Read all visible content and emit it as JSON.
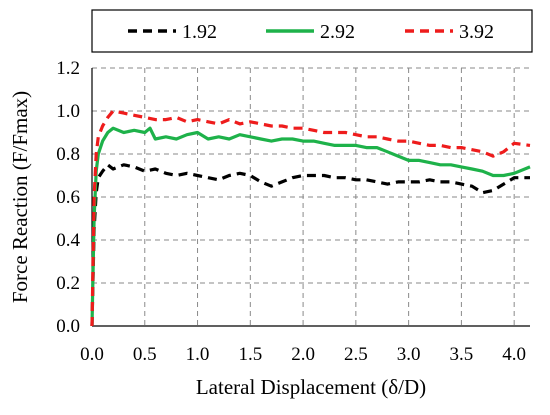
{
  "chart_data": {
    "type": "line",
    "xlabel": "Lateral Displacement (δ/D)",
    "ylabel": "Force Reaction (F/Fmax)",
    "xlim": [
      0.0,
      4.15
    ],
    "ylim": [
      0.0,
      1.2
    ],
    "xticks": [
      "0.0",
      "0.5",
      "1.0",
      "1.5",
      "2.0",
      "2.5",
      "3.0",
      "3.5",
      "4.0"
    ],
    "yticks": [
      "0.0",
      "0.2",
      "0.4",
      "0.6",
      "0.8",
      "1.0",
      "1.2"
    ],
    "grid": true,
    "legend_position": "top",
    "series": [
      {
        "name": "1.92",
        "color": "#000000",
        "style": "dashed",
        "x": [
          0.0,
          0.02,
          0.04,
          0.06,
          0.1,
          0.15,
          0.2,
          0.3,
          0.4,
          0.5,
          0.6,
          0.7,
          0.8,
          0.9,
          1.0,
          1.1,
          1.2,
          1.3,
          1.4,
          1.5,
          1.6,
          1.7,
          1.8,
          1.9,
          2.0,
          2.1,
          2.2,
          2.3,
          2.4,
          2.5,
          2.6,
          2.7,
          2.8,
          2.9,
          3.0,
          3.1,
          3.2,
          3.3,
          3.4,
          3.5,
          3.6,
          3.7,
          3.8,
          3.9,
          4.0,
          4.15
        ],
        "y": [
          0.0,
          0.45,
          0.62,
          0.69,
          0.72,
          0.75,
          0.73,
          0.75,
          0.74,
          0.72,
          0.73,
          0.71,
          0.7,
          0.71,
          0.7,
          0.69,
          0.68,
          0.7,
          0.71,
          0.7,
          0.67,
          0.65,
          0.67,
          0.69,
          0.7,
          0.7,
          0.7,
          0.69,
          0.69,
          0.68,
          0.68,
          0.67,
          0.66,
          0.67,
          0.67,
          0.67,
          0.68,
          0.67,
          0.67,
          0.66,
          0.65,
          0.62,
          0.63,
          0.66,
          0.69,
          0.69
        ]
      },
      {
        "name": "2.92",
        "color": "#1eb24a",
        "style": "solid",
        "x": [
          0.0,
          0.02,
          0.04,
          0.06,
          0.1,
          0.15,
          0.2,
          0.3,
          0.4,
          0.5,
          0.55,
          0.6,
          0.7,
          0.8,
          0.9,
          1.0,
          1.1,
          1.2,
          1.3,
          1.4,
          1.5,
          1.6,
          1.7,
          1.8,
          1.9,
          2.0,
          2.1,
          2.2,
          2.3,
          2.4,
          2.5,
          2.6,
          2.7,
          2.8,
          2.9,
          3.0,
          3.1,
          3.2,
          3.3,
          3.4,
          3.5,
          3.6,
          3.7,
          3.8,
          3.9,
          4.0,
          4.15
        ],
        "y": [
          0.0,
          0.5,
          0.72,
          0.8,
          0.86,
          0.9,
          0.92,
          0.9,
          0.91,
          0.9,
          0.92,
          0.87,
          0.88,
          0.87,
          0.89,
          0.9,
          0.87,
          0.88,
          0.87,
          0.89,
          0.88,
          0.87,
          0.86,
          0.87,
          0.87,
          0.86,
          0.86,
          0.85,
          0.84,
          0.84,
          0.84,
          0.83,
          0.83,
          0.81,
          0.79,
          0.77,
          0.77,
          0.76,
          0.75,
          0.75,
          0.74,
          0.73,
          0.72,
          0.7,
          0.7,
          0.71,
          0.74
        ]
      },
      {
        "name": "3.92",
        "color": "#ee1c1c",
        "style": "dashed",
        "x": [
          0.0,
          0.02,
          0.04,
          0.06,
          0.1,
          0.15,
          0.2,
          0.3,
          0.4,
          0.5,
          0.6,
          0.7,
          0.8,
          0.9,
          1.0,
          1.1,
          1.2,
          1.3,
          1.4,
          1.5,
          1.6,
          1.7,
          1.8,
          1.9,
          2.0,
          2.1,
          2.2,
          2.3,
          2.4,
          2.5,
          2.6,
          2.7,
          2.8,
          2.9,
          3.0,
          3.1,
          3.2,
          3.3,
          3.4,
          3.5,
          3.6,
          3.7,
          3.8,
          3.9,
          4.0,
          4.15
        ],
        "y": [
          0.0,
          0.6,
          0.8,
          0.88,
          0.93,
          0.97,
          1.0,
          0.99,
          0.98,
          0.97,
          0.96,
          0.96,
          0.97,
          0.95,
          0.96,
          0.95,
          0.94,
          0.96,
          0.94,
          0.95,
          0.94,
          0.93,
          0.93,
          0.92,
          0.92,
          0.91,
          0.9,
          0.9,
          0.9,
          0.89,
          0.88,
          0.88,
          0.87,
          0.86,
          0.86,
          0.85,
          0.84,
          0.84,
          0.83,
          0.83,
          0.82,
          0.81,
          0.79,
          0.81,
          0.85,
          0.84
        ]
      }
    ]
  }
}
